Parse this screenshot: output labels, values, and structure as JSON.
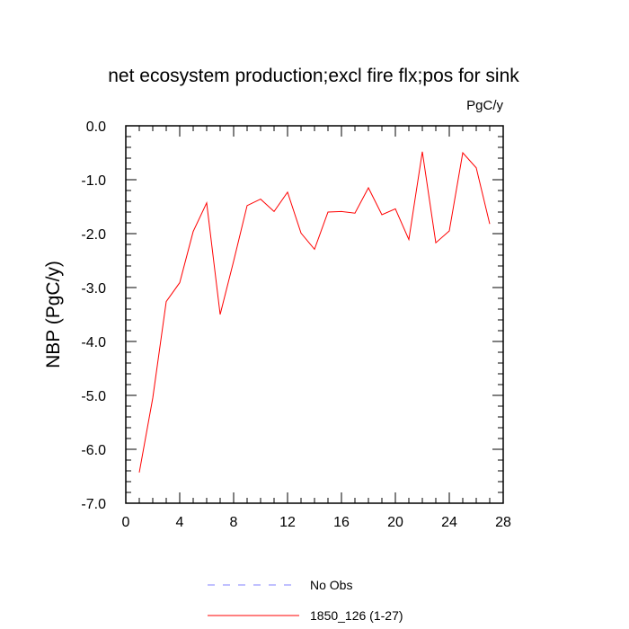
{
  "chart_data": {
    "type": "line",
    "title": "net ecosystem production;excl fire flx;pos for sink",
    "units_label": "PgC/y",
    "ylabel": "NBP  (PgC/y)",
    "xlabel": "",
    "xlim": [
      0,
      28
    ],
    "ylim": [
      -7.0,
      0.0
    ],
    "x_ticks": [
      0,
      4,
      8,
      12,
      16,
      20,
      24,
      28
    ],
    "x_tick_labels": [
      "0",
      "4",
      "8",
      "12",
      "16",
      "20",
      "24",
      "28"
    ],
    "y_ticks": [
      0.0,
      -1.0,
      -2.0,
      -3.0,
      -4.0,
      -5.0,
      -6.0,
      -7.0
    ],
    "y_tick_labels": [
      "0.0",
      "-1.0",
      "-2.0",
      "-3.0",
      "-4.0",
      "-5.0",
      "-6.0",
      "-7.0"
    ],
    "legend_position": "bottom-center",
    "series": [
      {
        "name": "No Obs",
        "color": "#8080ff",
        "dashed": true,
        "x": [],
        "values": []
      },
      {
        "name": "1850_126 (1-27)",
        "color": "#ff0000",
        "dashed": false,
        "x": [
          1,
          2,
          3,
          4,
          5,
          6,
          7,
          8,
          9,
          10,
          11,
          12,
          13,
          14,
          15,
          16,
          17,
          18,
          19,
          20,
          21,
          22,
          23,
          24,
          25,
          26,
          27
        ],
        "values": [
          -6.43,
          -5.05,
          -3.26,
          -2.91,
          -1.96,
          -1.43,
          -3.5,
          -2.51,
          -1.48,
          -1.36,
          -1.59,
          -1.23,
          -1.99,
          -2.29,
          -1.6,
          -1.59,
          -1.62,
          -1.15,
          -1.65,
          -1.54,
          -2.11,
          -0.48,
          -2.17,
          -1.95,
          -0.5,
          -0.78,
          -1.82
        ]
      }
    ]
  }
}
